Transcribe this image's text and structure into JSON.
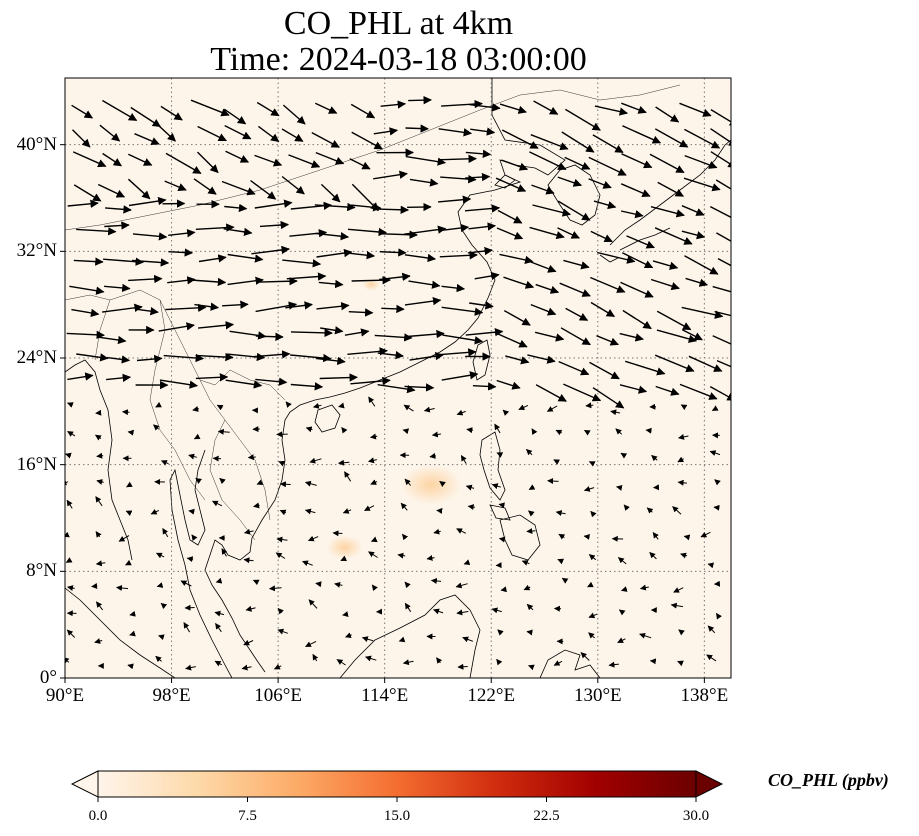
{
  "title_line1": "CO_PHL at 4km",
  "title_line2": "Time: 2024-03-18 03:00:00",
  "lon_ticks": [
    "90°E",
    "98°E",
    "106°E",
    "114°E",
    "122°E",
    "130°E",
    "138°E"
  ],
  "lat_ticks": [
    "40°N",
    "32°N",
    "24°N",
    "16°N",
    "8°N",
    "0°"
  ],
  "colorbar": {
    "label": "CO_PHL (ppbv)",
    "ticks": [
      "0.0",
      "7.5",
      "15.0",
      "22.5",
      "30.0"
    ],
    "min": 0,
    "max": 30,
    "colors": [
      "#fff5eb",
      "#fdd9a9",
      "#fdab67",
      "#f46d30",
      "#d02c0e",
      "#a10000",
      "#6b0000"
    ]
  },
  "map": {
    "lon_range": [
      90,
      140
    ],
    "lat_range": [
      0,
      45
    ],
    "gridlines": true,
    "background_color": "#fdf5ea",
    "plumes": [
      {
        "lon": 117.5,
        "lat": 14.5,
        "value": 5
      },
      {
        "lon": 111.0,
        "lat": 9.8,
        "value": 3
      },
      {
        "lon": 113.0,
        "lat": 29.5,
        "value": 1.5
      }
    ]
  }
}
